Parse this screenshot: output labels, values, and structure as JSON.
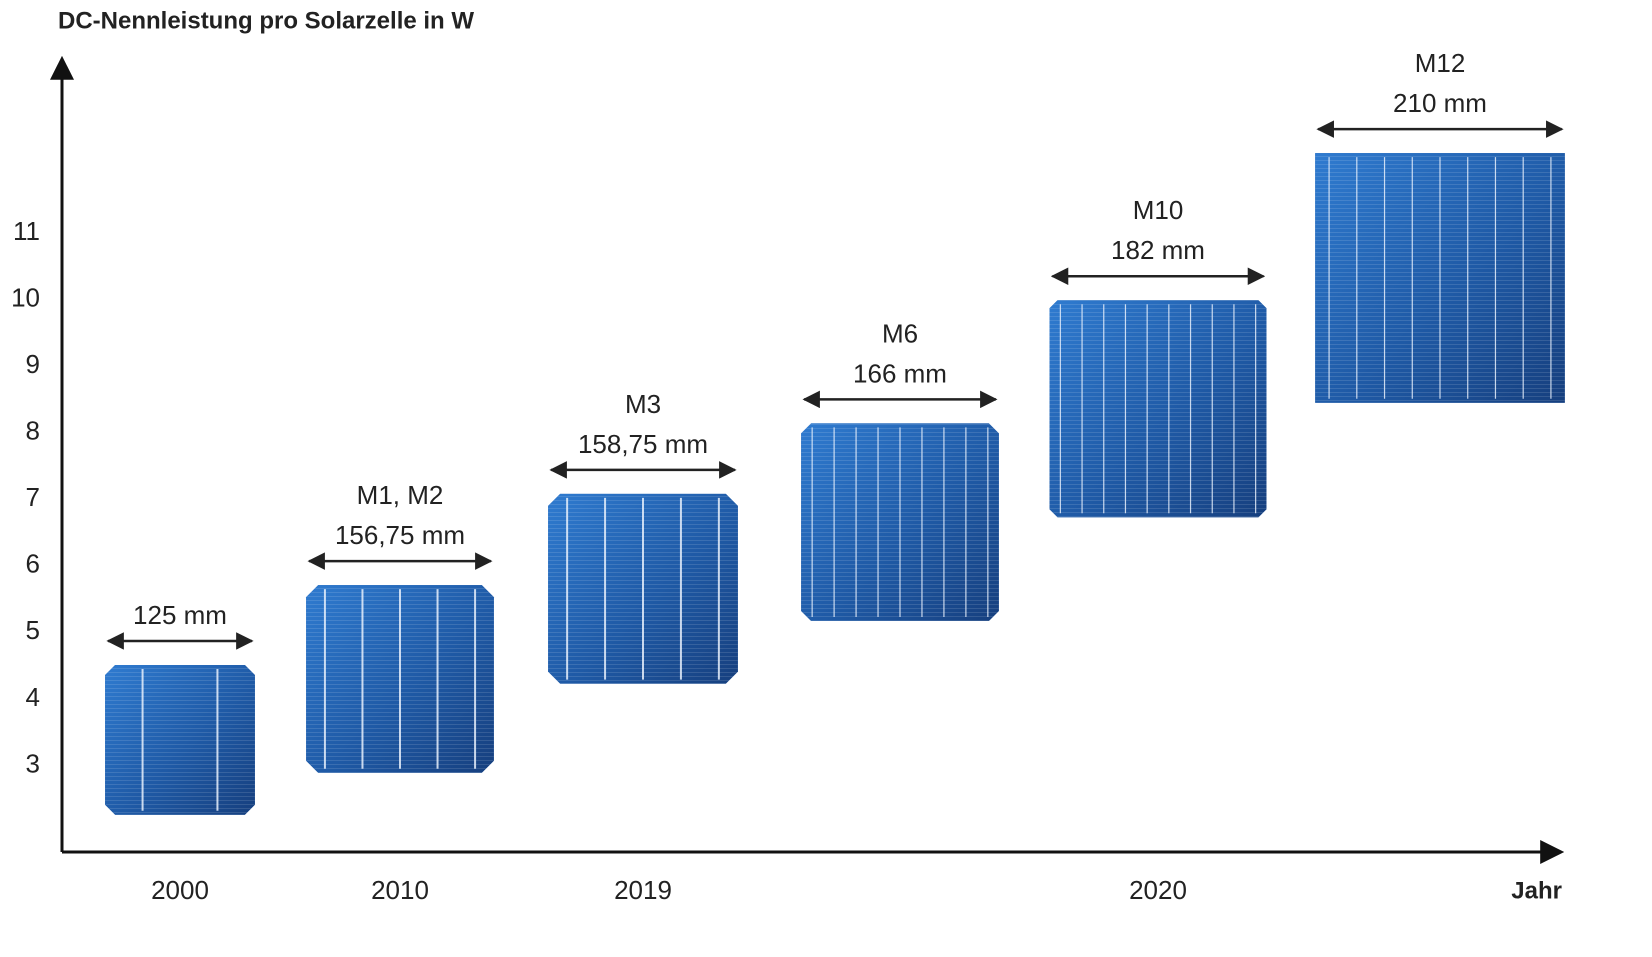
{
  "chart_data": {
    "type": "range",
    "title": "DC-Nennleistung pro Solarzelle in W",
    "x_label": "Jahr",
    "categories": [
      "2000",
      "2010",
      "2019",
      null,
      "2020",
      null
    ],
    "ranges": [
      [
        2.26,
        4.51
      ],
      [
        2.89,
        5.71
      ],
      [
        4.23,
        7.08
      ],
      [
        5.17,
        8.14
      ],
      [
        6.73,
        9.99
      ],
      [
        8.45,
        12.2
      ]
    ],
    "labels": [
      [
        "125 mm"
      ],
      [
        "M1, M2",
        "156,75 mm"
      ],
      [
        "M3",
        "158,75 mm"
      ],
      [
        "M6",
        "166 mm"
      ],
      [
        "M10",
        "182 mm"
      ],
      [
        "M12",
        "210 mm"
      ]
    ],
    "ylim": [
      1.7,
      13.6
    ],
    "yticks": [
      3,
      4,
      5,
      6,
      7,
      8,
      9,
      10,
      11
    ],
    "color": "#1f5aa6"
  }
}
